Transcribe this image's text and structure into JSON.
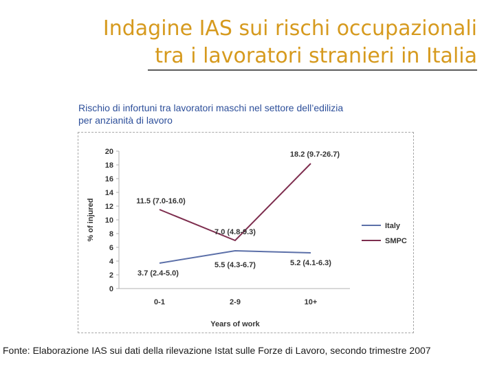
{
  "slide": {
    "title_line1": "Indagine IAS sui rischi occupazionali",
    "title_line2": "tra i lavoratori stranieri in Italia",
    "subtitle_line1": "Rischio di infortuni tra lavoratori maschi nel settore dell’edilizia",
    "subtitle_line2": "per anzianità di lavoro",
    "source": "Fonte: Elaborazione IAS sui dati della rilevazione Istat sulle Forze di Lavoro, secondo trimestre 2007"
  },
  "colors": {
    "title": "#d69a1e",
    "subtitle": "#2d4f9a",
    "italy": "#5b6fa8",
    "smpc": "#7d2d4e"
  },
  "chart_data": {
    "type": "line",
    "categories": [
      "0-1",
      "2-9",
      "10+"
    ],
    "xlabel": "Years of work",
    "ylabel": "% of injured",
    "ylim": [
      0,
      20
    ],
    "yticks": [
      0,
      2,
      4,
      6,
      8,
      10,
      12,
      14,
      16,
      18,
      20
    ],
    "grid": false,
    "legend": "right",
    "series": [
      {
        "name": "Italy",
        "color": "#5b6fa8",
        "values": [
          3.7,
          5.5,
          5.2
        ],
        "labels": [
          "3.7 (2.4-5.0)",
          "5.5 (4.3-6.7)",
          "5.2 (4.1-6.3)"
        ]
      },
      {
        "name": "SMPC",
        "color": "#7d2d4e",
        "values": [
          11.5,
          7.0,
          18.2
        ],
        "labels": [
          "11.5 (7.0-16.0)",
          "7.0 (4.8-9.3)",
          "18.2 (9.7-26.7)"
        ]
      }
    ]
  }
}
